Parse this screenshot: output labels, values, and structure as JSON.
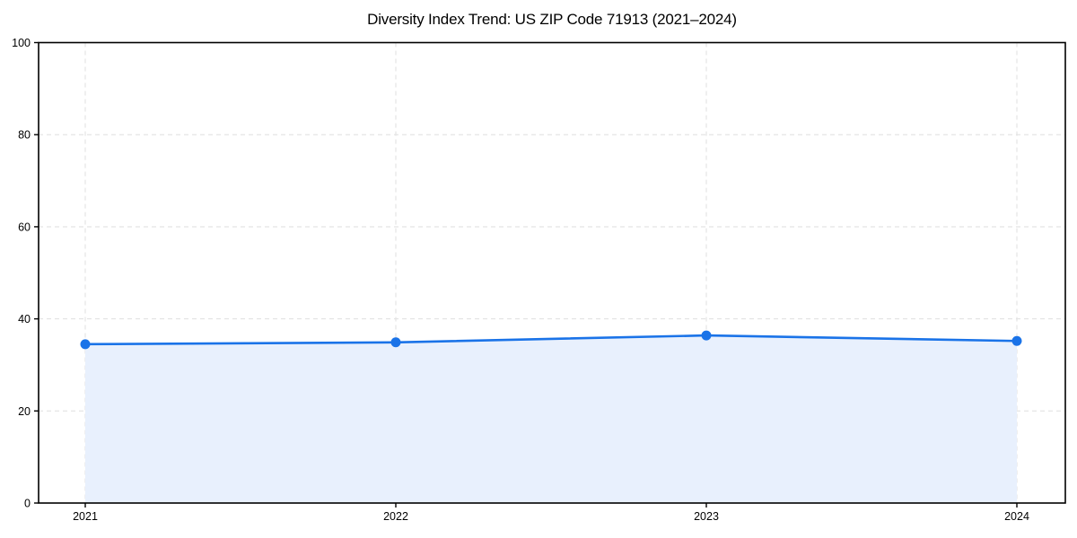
{
  "page": {
    "background": "#ffffff"
  },
  "chart_data": {
    "type": "area",
    "title": "Diversity Index Trend: US ZIP Code 71913 (2021–2024)",
    "x": [
      "2021",
      "2022",
      "2023",
      "2024"
    ],
    "series": [
      {
        "name": "Diversity Index",
        "values": [
          34.5,
          34.9,
          36.4,
          35.2
        ]
      }
    ],
    "xlabel": "",
    "ylabel": "",
    "yticks": [
      0,
      20,
      40,
      60,
      80,
      100
    ],
    "ytick_labels": [
      "0",
      "20",
      "40",
      "60",
      "80",
      "100"
    ],
    "ylim": [
      0,
      100
    ],
    "grid": "dashed-both-axes",
    "legend": "none",
    "colors": {
      "line": "#1a73e8",
      "marker": "#1a73e8",
      "fill": "#e8f0fd",
      "grid": "#e2e2e2",
      "spine": "#000000",
      "text": "#000000",
      "background": "#ffffff"
    }
  }
}
